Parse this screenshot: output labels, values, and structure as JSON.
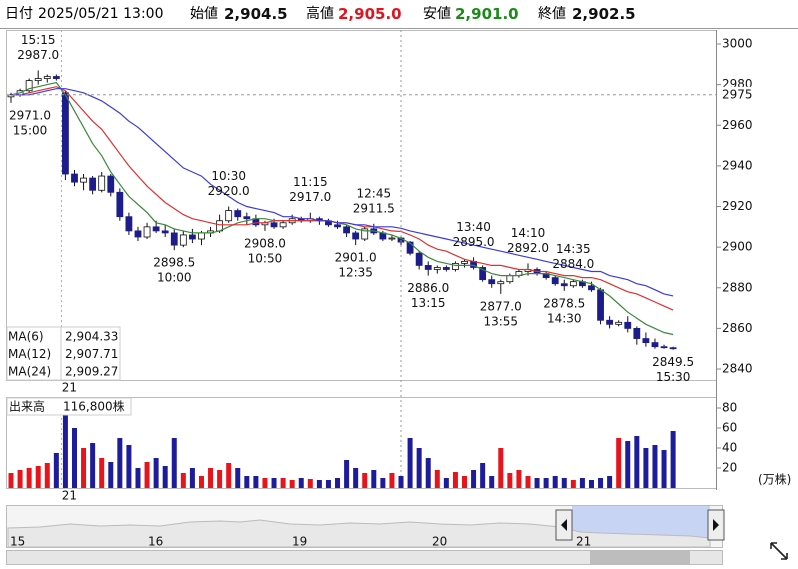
{
  "header": {
    "date_label": "日付",
    "date": "2025/05/21 13:00",
    "fields": [
      {
        "label": "始値",
        "value": "2,904.5",
        "color": "#111111"
      },
      {
        "label": "高値",
        "value": "2,905.0",
        "color": "#e0141e"
      },
      {
        "label": "安値",
        "value": "2,901.0",
        "color": "#1a8a1a"
      },
      {
        "label": "終値",
        "value": "2,902.5",
        "color": "#111111"
      }
    ]
  },
  "chart_data": [
    {
      "type": "candlestick",
      "categories": [
        null,
        null,
        null,
        null,
        null,
        null,
        "21",
        null,
        null,
        null,
        null,
        null,
        null,
        null,
        null,
        null,
        null,
        null,
        null,
        null,
        null,
        null,
        null,
        null,
        null,
        null,
        null,
        null,
        null,
        null,
        null,
        null,
        null,
        null,
        null,
        null,
        null,
        null,
        null,
        null,
        null,
        null,
        null,
        null,
        null,
        null,
        null,
        null,
        null,
        null,
        null,
        null,
        null,
        null,
        null,
        null,
        null,
        null,
        null,
        null,
        null,
        null,
        null,
        null,
        null,
        null,
        null,
        null,
        null,
        null,
        null,
        null,
        null,
        null
      ],
      "ohlc": [
        [
          2974,
          2976,
          2971,
          2975
        ],
        [
          2975,
          2978,
          2974,
          2977
        ],
        [
          2977,
          2983,
          2976,
          2982
        ],
        [
          2982,
          2987,
          2980,
          2983
        ],
        [
          2983,
          2985,
          2981,
          2984
        ],
        [
          2984,
          2985,
          2982,
          2983
        ],
        [
          2976,
          2977,
          2933,
          2936
        ],
        [
          2936,
          2938,
          2930,
          2932
        ],
        [
          2932,
          2936,
          2928,
          2934
        ],
        [
          2934,
          2935,
          2926,
          2928
        ],
        [
          2928,
          2937,
          2927,
          2935
        ],
        [
          2935,
          2936,
          2925,
          2927
        ],
        [
          2927,
          2929,
          2913,
          2915
        ],
        [
          2915,
          2917,
          2906,
          2908
        ],
        [
          2908,
          2910,
          2903,
          2905
        ],
        [
          2905,
          2912,
          2904,
          2910
        ],
        [
          2910,
          2913,
          2907,
          2908
        ],
        [
          2908,
          2911,
          2905,
          2907
        ],
        [
          2907,
          2909,
          2898.5,
          2901
        ],
        [
          2901,
          2908,
          2900,
          2906
        ],
        [
          2906,
          2909,
          2902,
          2904
        ],
        [
          2904,
          2908,
          2901,
          2907
        ],
        [
          2907,
          2910,
          2905,
          2908
        ],
        [
          2908,
          2916,
          2907,
          2913
        ],
        [
          2913,
          2920,
          2912,
          2918
        ],
        [
          2918,
          2919,
          2913,
          2915
        ],
        [
          2915,
          2917,
          2911,
          2914
        ],
        [
          2914,
          2916,
          2910,
          2911
        ],
        [
          2911,
          2913,
          2908,
          2912
        ],
        [
          2912,
          2914,
          2909,
          2910
        ],
        [
          2910,
          2913,
          2909,
          2912
        ],
        [
          2912,
          2916,
          2911,
          2914
        ],
        [
          2914,
          2915,
          2912,
          2913
        ],
        [
          2913,
          2917,
          2912,
          2914
        ],
        [
          2914,
          2915,
          2911,
          2913
        ],
        [
          2913,
          2914,
          2910,
          2911
        ],
        [
          2911,
          2913,
          2909,
          2910
        ],
        [
          2910,
          2911,
          2905,
          2907
        ],
        [
          2907,
          2908,
          2901,
          2904
        ],
        [
          2904,
          2910,
          2903,
          2909
        ],
        [
          2909,
          2911.5,
          2906,
          2907
        ],
        [
          2907,
          2908,
          2903,
          2904
        ],
        [
          2904,
          2906,
          2903,
          2904.5
        ],
        [
          2904.5,
          2905,
          2901,
          2902.5
        ],
        [
          2902.5,
          2903,
          2896,
          2897
        ],
        [
          2897,
          2898,
          2889,
          2891
        ],
        [
          2891,
          2893,
          2886,
          2889
        ],
        [
          2889,
          2891,
          2887,
          2890
        ],
        [
          2890,
          2891,
          2888,
          2889
        ],
        [
          2889,
          2893,
          2888,
          2892
        ],
        [
          2892,
          2894,
          2890,
          2893
        ],
        [
          2893,
          2895,
          2889,
          2890
        ],
        [
          2890,
          2891,
          2883,
          2884
        ],
        [
          2884,
          2886,
          2880,
          2882
        ],
        [
          2882,
          2884,
          2877,
          2883
        ],
        [
          2883,
          2887,
          2882,
          2886
        ],
        [
          2886,
          2889,
          2885,
          2888
        ],
        [
          2888,
          2892,
          2886,
          2889
        ],
        [
          2889,
          2890,
          2886,
          2887
        ],
        [
          2887,
          2888,
          2884,
          2885
        ],
        [
          2885,
          2886,
          2881,
          2882
        ],
        [
          2882,
          2884,
          2878.5,
          2881
        ],
        [
          2881,
          2884,
          2880,
          2883
        ],
        [
          2883,
          2884,
          2880,
          2881
        ],
        [
          2881,
          2883,
          2878,
          2879
        ],
        [
          2879,
          2880,
          2862,
          2864
        ],
        [
          2864,
          2866,
          2860,
          2862
        ],
        [
          2862,
          2864,
          2861,
          2863
        ],
        [
          2863,
          2866,
          2858,
          2860
        ],
        [
          2860,
          2861,
          2852,
          2855
        ],
        [
          2855,
          2858,
          2851,
          2853
        ],
        [
          2853,
          2855,
          2850,
          2851
        ],
        [
          2851,
          2852,
          2850,
          2850.5
        ],
        [
          2850.5,
          2851,
          2849.5,
          2850
        ]
      ],
      "up_color": "#ffffff",
      "down_color": "#1c1c8c",
      "wick_color": "#111111",
      "series": [
        {
          "name": "MA(6)",
          "color": "#3a8a3a",
          "current_label": "2,904.33",
          "values": [
            2975,
            2976,
            2978,
            2979,
            2980,
            2981,
            2975,
            2967,
            2959,
            2951,
            2945,
            2937,
            2931,
            2925,
            2921,
            2917,
            2912,
            2911,
            2909,
            2908,
            2907,
            2907,
            2907,
            2908,
            2910,
            2912,
            2913,
            2914,
            2914,
            2913,
            2913,
            2913,
            2913,
            2913,
            2913,
            2913,
            2912,
            2911,
            2909,
            2908,
            2908,
            2907,
            2906,
            2904.33,
            2902,
            2898,
            2895,
            2893,
            2892,
            2891,
            2891,
            2891,
            2889,
            2887,
            2886,
            2886,
            2886,
            2887,
            2887,
            2887,
            2886,
            2885,
            2884,
            2883,
            2882,
            2879,
            2876,
            2872,
            2868,
            2865,
            2862,
            2860,
            2858,
            2857
          ]
        },
        {
          "name": "MA(12)",
          "color": "#e03030",
          "current_label": "2,907.71",
          "values": [
            2975,
            2975,
            2976,
            2977,
            2978,
            2979,
            2977,
            2972,
            2967,
            2962,
            2958,
            2952,
            2946,
            2940,
            2935,
            2930,
            2926,
            2922,
            2919,
            2916,
            2914,
            2913,
            2912,
            2911,
            2911,
            2911,
            2911,
            2912,
            2912,
            2913,
            2913,
            2913,
            2913,
            2913,
            2913,
            2913,
            2912,
            2912,
            2911,
            2910,
            2910,
            2909,
            2908,
            2907.71,
            2906,
            2904,
            2901,
            2899,
            2898,
            2896,
            2894,
            2893,
            2892,
            2891,
            2891,
            2890,
            2889,
            2889,
            2888,
            2888,
            2887,
            2886,
            2886,
            2885,
            2885,
            2884,
            2882,
            2880,
            2878,
            2877,
            2875,
            2873,
            2871,
            2869
          ]
        },
        {
          "name": "MA(24)",
          "color": "#3a3ae0",
          "current_label": "2,909.27",
          "values": [
            2975,
            2975,
            2975,
            2976,
            2977,
            2978,
            2978,
            2977,
            2976,
            2974,
            2972,
            2969,
            2966,
            2962,
            2959,
            2955,
            2951,
            2947,
            2943,
            2939,
            2937,
            2935,
            2931,
            2928,
            2925,
            2922,
            2920,
            2919,
            2918,
            2917,
            2915,
            2915,
            2914,
            2914,
            2913,
            2913,
            2912,
            2912,
            2911,
            2911,
            2910,
            2910,
            2910,
            2909.27,
            2908,
            2907,
            2906,
            2905,
            2904,
            2903,
            2902,
            2901,
            2900,
            2899,
            2898,
            2897,
            2896,
            2895,
            2894,
            2893,
            2892,
            2891,
            2890,
            2889,
            2888,
            2888,
            2886,
            2885,
            2884,
            2882,
            2881,
            2879,
            2877,
            2876
          ]
        }
      ],
      "annotations": [
        {
          "index": 0,
          "value": 2971,
          "value_label": "2971.0",
          "time": "15:00",
          "position": "below"
        },
        {
          "index": 3,
          "value": 2987,
          "value_label": "2987.0",
          "time": "15:15",
          "position": "above"
        },
        {
          "index": 18,
          "value": 2898.5,
          "value_label": "2898.5",
          "time": "10:00",
          "position": "below"
        },
        {
          "index": 24,
          "value": 2920,
          "value_label": "2920.0",
          "time": "10:30",
          "position": "above"
        },
        {
          "index": 28,
          "value": 2908,
          "value_label": "2908.0",
          "time": "10:50",
          "position": "below"
        },
        {
          "index": 33,
          "value": 2917,
          "value_label": "2917.0",
          "time": "11:15",
          "position": "above"
        },
        {
          "index": 38,
          "value": 2901,
          "value_label": "2901.0",
          "time": "12:35",
          "position": "below"
        },
        {
          "index": 40,
          "value": 2911.5,
          "value_label": "2911.5",
          "time": "12:45",
          "position": "above"
        },
        {
          "index": 46,
          "value": 2886,
          "value_label": "2886.0",
          "time": "13:15",
          "position": "below"
        },
        {
          "index": 51,
          "value": 2895,
          "value_label": "2895.0",
          "time": "13:40",
          "position": "above"
        },
        {
          "index": 54,
          "value": 2877,
          "value_label": "2877.0",
          "time": "13:55",
          "position": "below"
        },
        {
          "index": 57,
          "value": 2892,
          "value_label": "2892.0",
          "time": "14:10",
          "position": "above"
        },
        {
          "index": 61,
          "value": 2878.5,
          "value_label": "2878.5",
          "time": "14:30",
          "position": "below"
        },
        {
          "index": 62,
          "value": 2884,
          "value_label": "2884.0",
          "time": "14:35",
          "position": "above"
        },
        {
          "index": 73,
          "value": 2849.5,
          "value_label": "2849.5",
          "time": "15:30",
          "position": "below"
        }
      ],
      "crosshair": {
        "index": 43,
        "value": 2975,
        "label": "2975",
        "color": "#f07810"
      },
      "ylim": [
        2834.6,
        3006.9
      ],
      "yticks": [
        2840,
        2860,
        2880,
        2900,
        2920,
        2940,
        2960,
        2980,
        3000
      ],
      "grid": false
    },
    {
      "type": "bar",
      "title": "出来高",
      "current_label": "116,800株",
      "unit": "(万株)",
      "categories": [
        null,
        null,
        null,
        null,
        null,
        null,
        "21",
        null,
        null,
        null,
        null,
        null,
        null,
        null,
        null,
        null,
        null,
        null,
        null,
        null,
        null,
        null,
        null,
        null,
        null,
        null,
        null,
        null,
        null,
        null,
        null,
        null,
        null,
        null,
        null,
        null,
        null,
        null,
        null,
        null,
        null,
        null,
        null,
        null,
        null,
        null,
        null,
        null,
        null,
        null,
        null,
        null,
        null,
        null,
        null,
        null,
        null,
        null,
        null,
        null,
        null,
        null,
        null,
        null,
        null,
        null,
        null,
        null,
        null,
        null,
        null,
        null,
        null,
        null
      ],
      "values": [
        15,
        18,
        20,
        22,
        25,
        35,
        75,
        60,
        40,
        45,
        30,
        26,
        50,
        43,
        20,
        26,
        30,
        22,
        50,
        15,
        20,
        12,
        20,
        18,
        25,
        20,
        12,
        12,
        10,
        10,
        10,
        8,
        10,
        9,
        8,
        8,
        10,
        28,
        20,
        15,
        18,
        10,
        15,
        12,
        50,
        40,
        30,
        18,
        10,
        16,
        12,
        18,
        25,
        12,
        40,
        15,
        18,
        12,
        10,
        10,
        12,
        10,
        8,
        10,
        8,
        10,
        12,
        50,
        47,
        52,
        40,
        43,
        38,
        57
      ],
      "up_color": "#e8141b",
      "down_color": "#1c1c9c",
      "flat_color": "#999999",
      "ylim": [
        0,
        90
      ],
      "yticks": [
        20,
        40,
        60,
        80
      ],
      "grid": false
    }
  ],
  "navigator": {
    "labels": [
      "15",
      "16",
      "19",
      "20",
      "21"
    ]
  }
}
